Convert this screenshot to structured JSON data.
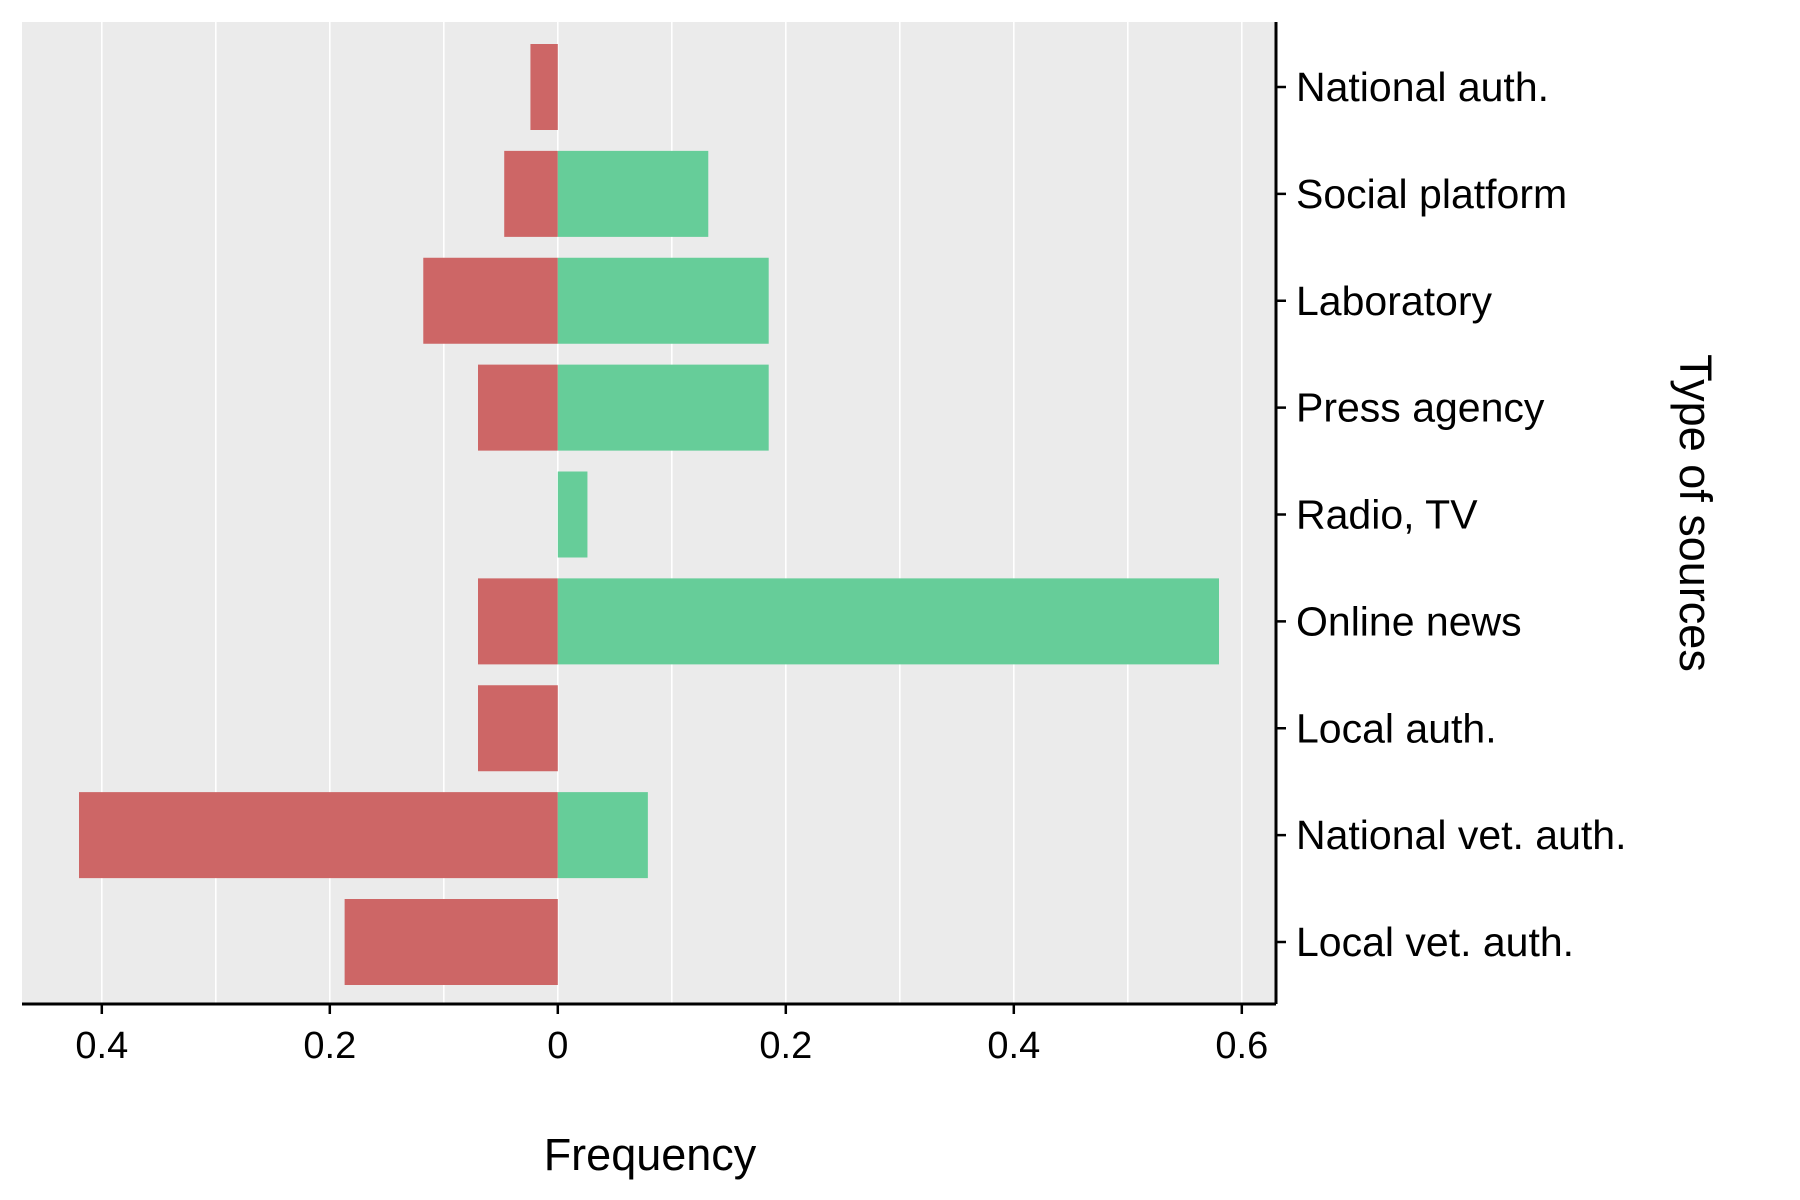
{
  "chart_data": {
    "type": "bar",
    "orientation": "horizontal-diverging",
    "categories": [
      "National auth.",
      "Social platform",
      "Laboratory",
      "Press agency",
      "Radio, TV",
      "Online news",
      "Local auth.",
      "National vet. auth.",
      "Local vet. auth."
    ],
    "series": [
      {
        "color": "#cd6666",
        "direction": "left",
        "values": [
          0.024,
          0.047,
          0.118,
          0.07,
          0.0,
          0.07,
          0.07,
          0.42,
          0.187
        ]
      },
      {
        "color": "#66cd99",
        "direction": "right",
        "values": [
          0.0,
          0.132,
          0.185,
          0.185,
          0.026,
          0.58,
          0.0,
          0.079,
          0.0
        ]
      }
    ],
    "xlim": [
      -0.47,
      0.63
    ],
    "x_ticks": [
      -0.4,
      -0.2,
      0,
      0.2,
      0.4,
      0.6
    ],
    "x_tick_labels": [
      "0.4",
      "0.2",
      "0",
      "0.2",
      "0.4",
      "0.6"
    ],
    "xlabel": "Frequency",
    "ylabel": "Type of sources",
    "y_axis_position": "right",
    "grid": {
      "vertical_major": true,
      "vertical_minor": true,
      "horizontal": false
    },
    "panel_background": "#ebebeb",
    "grid_color": "#ffffff",
    "legend": "none"
  }
}
